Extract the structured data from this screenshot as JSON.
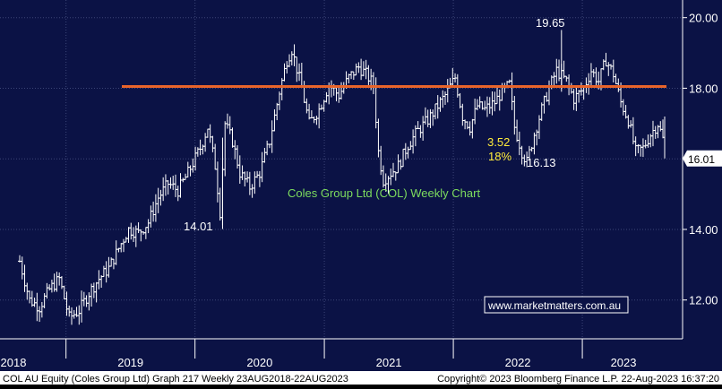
{
  "chart_data": {
    "type": "ohlc",
    "x_labels": [
      "2018",
      "2019",
      "2020",
      "2021",
      "2022",
      "2023"
    ],
    "y_ticks": [
      "20.00",
      "18.00",
      "16.00",
      "14.00",
      "12.00"
    ],
    "ylim": [
      10.9,
      20.5
    ],
    "xlim": [
      "2018-08-23",
      "2023-08-22"
    ],
    "last_price": "16.01",
    "resistance": 18.05,
    "annotations": {
      "high": "19.65",
      "low_2020": "14.01",
      "low_2022": "16.13",
      "move_value": "3.52",
      "move_pct": "18%",
      "chart_title": "Coles Group Ltd (COL) Weekly Chart",
      "website": "www.marketmatters.com.au"
    },
    "footer": {
      "left": "COL AU Equity (Coles Group Ltd) Graph 217  Weekly 23AUG2018-22AUG2023",
      "right": "Copyright© 2023 Bloomberg Finance L.P.     22-Aug-2023 16:37:20"
    },
    "anchors": [
      [
        "2018-08-23",
        13.1
      ],
      [
        "2018-09-20",
        12.0
      ],
      [
        "2018-10-18",
        11.8
      ],
      [
        "2018-11-15",
        12.3
      ],
      [
        "2018-12-13",
        12.6
      ],
      [
        "2019-01-10",
        11.5
      ],
      [
        "2019-02-07",
        11.7
      ],
      [
        "2019-03-07",
        12.2
      ],
      [
        "2019-04-04",
        12.6
      ],
      [
        "2019-05-02",
        12.9
      ],
      [
        "2019-06-06",
        13.6
      ],
      [
        "2019-06-27",
        14.0
      ],
      [
        "2019-07-25",
        13.9
      ],
      [
        "2019-08-22",
        14.2
      ],
      [
        "2019-09-19",
        14.9
      ],
      [
        "2019-10-17",
        15.3
      ],
      [
        "2019-11-14",
        15.1
      ],
      [
        "2019-12-12",
        15.6
      ],
      [
        "2020-01-16",
        16.3
      ],
      [
        "2020-02-06",
        16.9
      ],
      [
        "2020-02-27",
        15.8
      ],
      [
        "2020-03-12",
        14.5
      ],
      [
        "2020-03-26",
        17.0
      ],
      [
        "2020-04-16",
        16.5
      ],
      [
        "2020-05-07",
        15.6
      ],
      [
        "2020-06-04",
        15.2
      ],
      [
        "2020-07-02",
        15.6
      ],
      [
        "2020-07-30",
        16.5
      ],
      [
        "2020-08-27",
        17.9
      ],
      [
        "2020-09-17",
        18.8
      ],
      [
        "2020-10-01",
        19.1
      ],
      [
        "2020-10-29",
        18.0
      ],
      [
        "2020-11-19",
        17.0
      ],
      [
        "2020-12-17",
        17.4
      ],
      [
        "2021-01-14",
        18.1
      ],
      [
        "2021-02-11",
        17.8
      ],
      [
        "2021-03-11",
        18.3
      ],
      [
        "2021-04-08",
        18.6
      ],
      [
        "2021-04-29",
        18.4
      ],
      [
        "2021-05-20",
        18.1
      ],
      [
        "2021-06-03",
        16.2
      ],
      [
        "2021-06-17",
        15.4
      ],
      [
        "2021-07-08",
        15.6
      ],
      [
        "2021-07-29",
        15.8
      ],
      [
        "2021-08-26",
        16.4
      ],
      [
        "2021-09-23",
        16.8
      ],
      [
        "2021-10-21",
        17.1
      ],
      [
        "2021-11-11",
        17.4
      ],
      [
        "2021-12-09",
        17.8
      ],
      [
        "2022-01-06",
        18.3
      ],
      [
        "2022-01-27",
        17.2
      ],
      [
        "2022-02-17",
        16.9
      ],
      [
        "2022-03-10",
        17.5
      ],
      [
        "2022-03-31",
        17.4
      ],
      [
        "2022-04-28",
        17.6
      ],
      [
        "2022-05-19",
        17.9
      ],
      [
        "2022-06-09",
        18.1
      ],
      [
        "2022-06-23",
        16.9
      ],
      [
        "2022-07-14",
        16.2
      ],
      [
        "2022-07-28",
        15.9
      ],
      [
        "2022-08-18",
        16.7
      ],
      [
        "2022-09-08",
        17.4
      ],
      [
        "2022-09-29",
        18.0
      ],
      [
        "2022-10-20",
        18.5
      ],
      [
        "2022-11-17",
        18.2
      ],
      [
        "2022-12-08",
        17.7
      ],
      [
        "2023-01-05",
        18.0
      ],
      [
        "2023-01-26",
        18.5
      ],
      [
        "2023-02-16",
        18.2
      ],
      [
        "2023-03-09",
        18.8
      ],
      [
        "2023-03-30",
        18.4
      ],
      [
        "2023-04-20",
        17.6
      ],
      [
        "2023-05-11",
        17.1
      ],
      [
        "2023-06-01",
        16.2
      ],
      [
        "2023-06-22",
        16.3
      ],
      [
        "2023-07-13",
        16.7
      ],
      [
        "2023-08-03",
        17.0
      ],
      [
        "2023-08-22",
        16.4
      ]
    ],
    "colors": {
      "background": "#0b1245",
      "bars": "#ffffff",
      "resistance_line": "#e8642a",
      "annotation_yellow": "#ffeb3b",
      "title_green": "#7ddc5e",
      "website_text": "#ffffff",
      "grid": "#3c4577"
    }
  }
}
